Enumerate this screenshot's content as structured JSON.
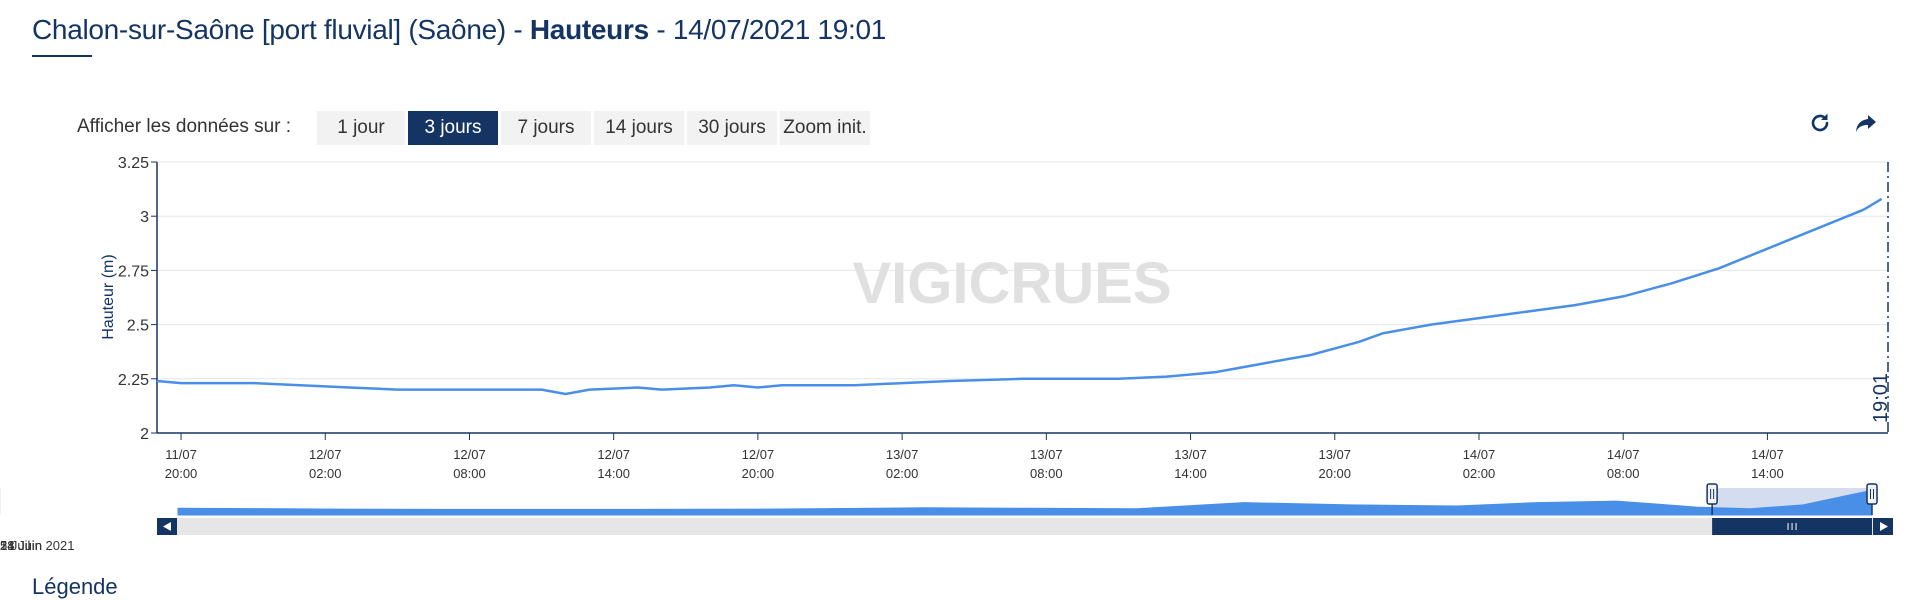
{
  "header": {
    "station": "Chalon-sur-Saône [port fluvial] (Saône) -",
    "measure": "Hauteurs",
    "timestamp": "- 14/07/2021 19:01"
  },
  "range_selector": {
    "label": "Afficher les données sur :",
    "buttons": [
      "1 jour",
      "3 jours",
      "7 jours",
      "14 jours",
      "30 jours",
      "Zoom init."
    ],
    "active": "3 jours"
  },
  "toolbar": {
    "icons": [
      "refresh-icon",
      "share-icon"
    ]
  },
  "watermark": "VIGICRUES",
  "now_marker_label": "19:01",
  "colors": {
    "series": "#4a8fe7",
    "dark_blue": "#143564",
    "grid": "#e6e6e6",
    "navigator_fill": "#4a8fe7"
  },
  "chart_data": {
    "type": "line",
    "ylabel": "Hauteur (m)",
    "ylim": [
      2,
      3.25
    ],
    "yticks": [
      {
        "value": 2,
        "label": "2"
      },
      {
        "value": 2.25,
        "label": "2.25"
      },
      {
        "value": 2.5,
        "label": "2.5"
      },
      {
        "value": 2.75,
        "label": "2.75"
      },
      {
        "value": 3,
        "label": "3"
      },
      {
        "value": 3.25,
        "label": "3.25"
      }
    ],
    "xrange": [
      "2021-07-11T19:00",
      "2021-07-14T19:01"
    ],
    "xticks": [
      {
        "t": "2021-07-11T20:00",
        "line1": "11/07",
        "line2": "20:00"
      },
      {
        "t": "2021-07-12T02:00",
        "line1": "12/07",
        "line2": "02:00"
      },
      {
        "t": "2021-07-12T08:00",
        "line1": "12/07",
        "line2": "08:00"
      },
      {
        "t": "2021-07-12T14:00",
        "line1": "12/07",
        "line2": "14:00"
      },
      {
        "t": "2021-07-12T20:00",
        "line1": "12/07",
        "line2": "20:00"
      },
      {
        "t": "2021-07-13T02:00",
        "line1": "13/07",
        "line2": "02:00"
      },
      {
        "t": "2021-07-13T08:00",
        "line1": "13/07",
        "line2": "08:00"
      },
      {
        "t": "2021-07-13T14:00",
        "line1": "13/07",
        "line2": "14:00"
      },
      {
        "t": "2021-07-13T20:00",
        "line1": "13/07",
        "line2": "20:00"
      },
      {
        "t": "2021-07-14T02:00",
        "line1": "14/07",
        "line2": "02:00"
      },
      {
        "t": "2021-07-14T08:00",
        "line1": "14/07",
        "line2": "08:00"
      },
      {
        "t": "2021-07-14T14:00",
        "line1": "14/07",
        "line2": "14:00"
      }
    ],
    "series": [
      {
        "points": [
          [
            "2021-07-11T19:00",
            2.24
          ],
          [
            "2021-07-11T20:00",
            2.23
          ],
          [
            "2021-07-11T23:00",
            2.23
          ],
          [
            "2021-07-12T03:00",
            2.21
          ],
          [
            "2021-07-12T05:00",
            2.2
          ],
          [
            "2021-07-12T11:00",
            2.2
          ],
          [
            "2021-07-12T12:00",
            2.18
          ],
          [
            "2021-07-12T13:00",
            2.2
          ],
          [
            "2021-07-12T15:00",
            2.21
          ],
          [
            "2021-07-12T16:00",
            2.2
          ],
          [
            "2021-07-12T18:00",
            2.21
          ],
          [
            "2021-07-12T19:00",
            2.22
          ],
          [
            "2021-07-12T20:00",
            2.21
          ],
          [
            "2021-07-12T21:00",
            2.22
          ],
          [
            "2021-07-13T00:00",
            2.22
          ],
          [
            "2021-07-13T02:00",
            2.23
          ],
          [
            "2021-07-13T04:00",
            2.24
          ],
          [
            "2021-07-13T07:00",
            2.25
          ],
          [
            "2021-07-13T09:00",
            2.25
          ],
          [
            "2021-07-13T11:00",
            2.25
          ],
          [
            "2021-07-13T13:00",
            2.26
          ],
          [
            "2021-07-13T14:00",
            2.27
          ],
          [
            "2021-07-13T15:00",
            2.28
          ],
          [
            "2021-07-13T16:00",
            2.3
          ],
          [
            "2021-07-13T17:00",
            2.32
          ],
          [
            "2021-07-13T19:00",
            2.36
          ],
          [
            "2021-07-13T20:00",
            2.39
          ],
          [
            "2021-07-13T21:00",
            2.42
          ],
          [
            "2021-07-13T22:00",
            2.46
          ],
          [
            "2021-07-14T00:00",
            2.5
          ],
          [
            "2021-07-14T02:00",
            2.53
          ],
          [
            "2021-07-14T04:00",
            2.56
          ],
          [
            "2021-07-14T06:00",
            2.59
          ],
          [
            "2021-07-14T08:00",
            2.63
          ],
          [
            "2021-07-14T10:00",
            2.69
          ],
          [
            "2021-07-14T12:00",
            2.76
          ],
          [
            "2021-07-14T14:00",
            2.85
          ],
          [
            "2021-07-14T16:00",
            2.94
          ],
          [
            "2021-07-14T18:00",
            3.03
          ],
          [
            "2021-07-14T18:45",
            3.08
          ]
        ]
      }
    ],
    "navigator": {
      "labels": [
        {
          "t": "2021-06-14",
          "label": "14 Juin 2021"
        },
        {
          "t": "2021-06-21",
          "label": "21 Juin"
        },
        {
          "t": "2021-06-28",
          "label": "28 Juin"
        },
        {
          "t": "2021-07-05",
          "label": "5 Juil"
        }
      ],
      "range": [
        "2021-06-13T00:00",
        "2021-07-14T19:01"
      ],
      "profile": [
        [
          "2021-06-13T00:00",
          2.3
        ],
        [
          "2021-06-15T00:00",
          2.28
        ],
        [
          "2021-06-16T00:00",
          2.26
        ],
        [
          "2021-06-18T00:00",
          2.25
        ],
        [
          "2021-06-21T00:00",
          2.25
        ],
        [
          "2021-06-24T00:00",
          2.26
        ],
        [
          "2021-06-27T00:00",
          2.32
        ],
        [
          "2021-06-29T00:00",
          2.3
        ],
        [
          "2021-07-01T00:00",
          2.28
        ],
        [
          "2021-07-03T00:00",
          2.55
        ],
        [
          "2021-07-05T00:00",
          2.45
        ],
        [
          "2021-07-07T00:00",
          2.4
        ],
        [
          "2021-07-08T12:00",
          2.55
        ],
        [
          "2021-07-10T00:00",
          2.62
        ],
        [
          "2021-07-11T12:00",
          2.35
        ],
        [
          "2021-07-12T12:00",
          2.28
        ],
        [
          "2021-07-13T12:00",
          2.45
        ],
        [
          "2021-07-14T19:00",
          3.1
        ]
      ],
      "selected": [
        "2021-07-11T19:00",
        "2021-07-14T19:01"
      ]
    }
  },
  "footer": {
    "legend_heading": "Légende"
  }
}
